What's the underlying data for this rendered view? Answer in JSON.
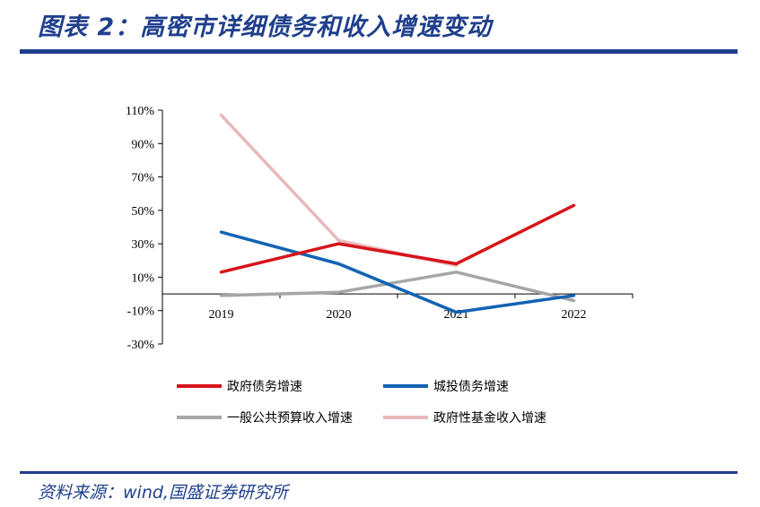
{
  "header": {
    "title": "图表 2：高密市详细债务和收入增速变动"
  },
  "footer": {
    "source": "资料来源：wind,国盛证券研究所"
  },
  "chart_data": {
    "type": "line",
    "categories": [
      "2019",
      "2020",
      "2021",
      "2022"
    ],
    "ylim": [
      -30,
      110
    ],
    "yticks": [
      -30,
      -10,
      10,
      30,
      50,
      70,
      90,
      110
    ],
    "ytick_labels": [
      "-30%",
      "-10%",
      "10%",
      "30%",
      "50%",
      "70%",
      "90%",
      "110%"
    ],
    "y_unit": "%",
    "legend_position": "bottom",
    "series": [
      {
        "name": "政府债务增速",
        "color": "#d7141a",
        "values": [
          13,
          30,
          18,
          53
        ]
      },
      {
        "name": "城投债务增速",
        "color": "#1363b3",
        "values": [
          37,
          18,
          -11,
          -1
        ]
      },
      {
        "name": "一般公共预算收入增速",
        "color": "#a6a6a6",
        "values": [
          -1,
          1,
          13,
          -4
        ]
      },
      {
        "name": "政府性基金收入增速",
        "color": "#e8b8bb",
        "values": [
          107,
          32,
          17,
          null
        ]
      }
    ]
  }
}
